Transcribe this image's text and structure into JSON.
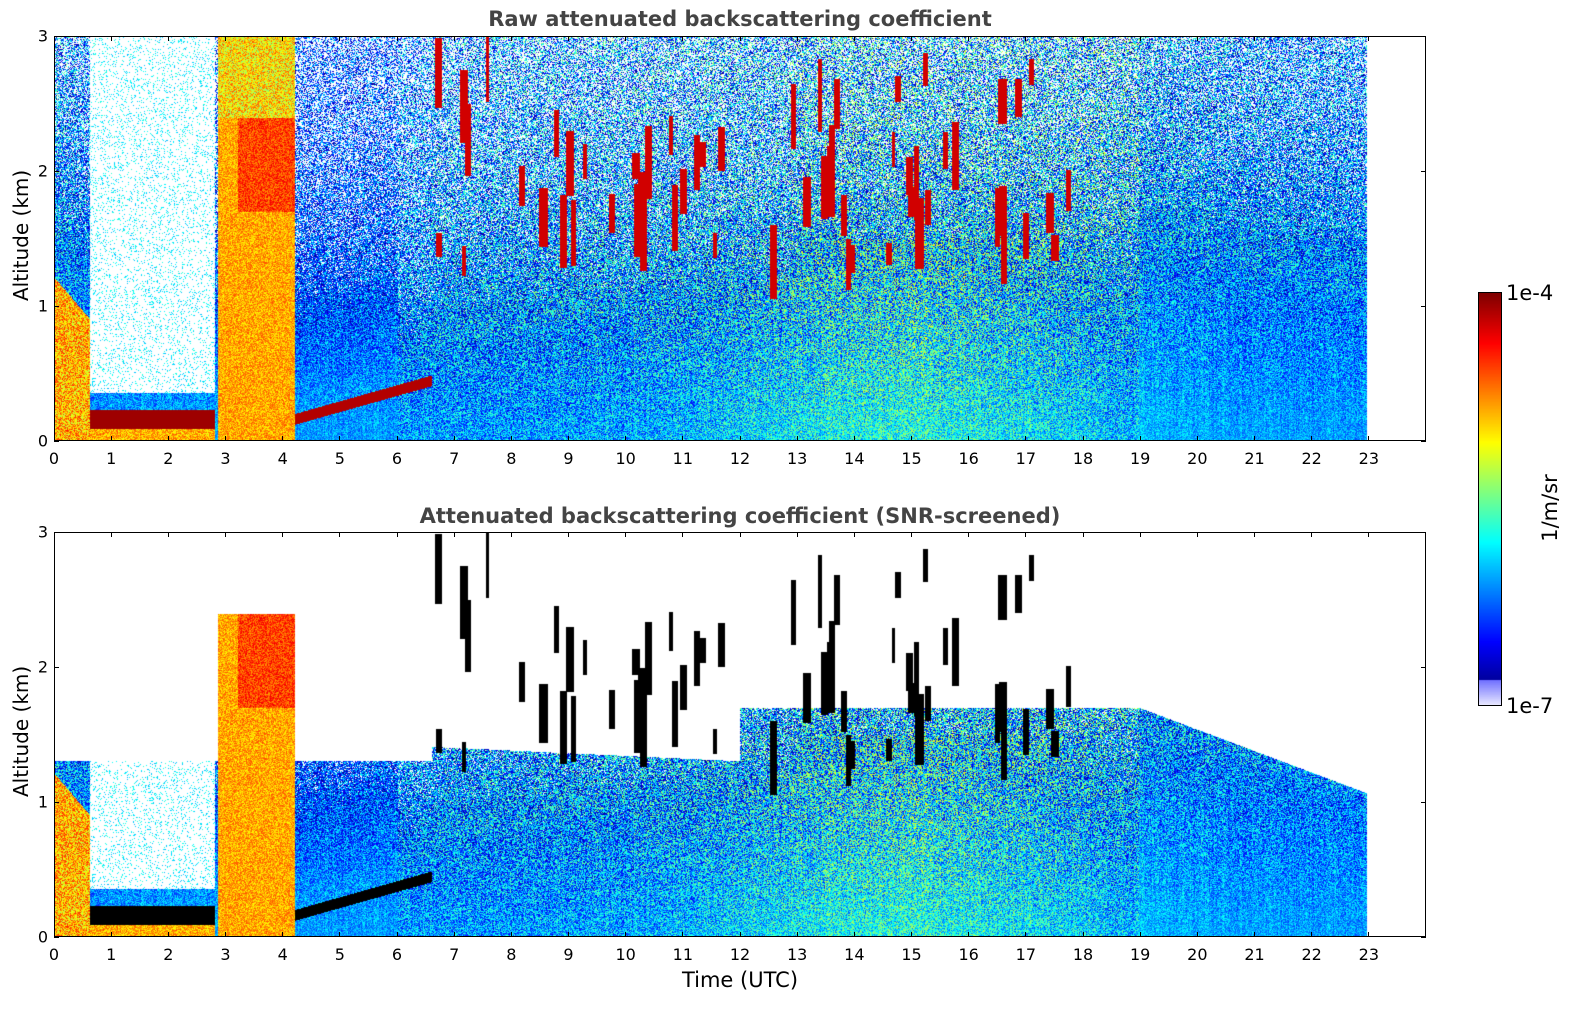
{
  "chart_data": [
    {
      "type": "heatmap",
      "title": "Raw attenuated backscattering coefficient",
      "xlabel": "",
      "ylabel": "Altitude (km)",
      "xlim": [
        0,
        24
      ],
      "ylim": [
        0,
        3
      ],
      "x_ticks": [
        "0",
        "1",
        "2",
        "3",
        "4",
        "5",
        "6",
        "7",
        "8",
        "9",
        "10",
        "11",
        "12",
        "13",
        "14",
        "15",
        "16",
        "17",
        "18",
        "19",
        "20",
        "21",
        "22",
        "23"
      ],
      "y_ticks": [
        "0",
        "1",
        "2",
        "3"
      ],
      "data_end_time": 23,
      "screened": false
    },
    {
      "type": "heatmap",
      "title": "Attenuated backscattering coefficient (SNR-screened)",
      "xlabel": "Time (UTC)",
      "ylabel": "Altitude (km)",
      "xlim": [
        0,
        24
      ],
      "ylim": [
        0,
        3
      ],
      "x_ticks": [
        "0",
        "1",
        "2",
        "3",
        "4",
        "5",
        "6",
        "7",
        "8",
        "9",
        "10",
        "11",
        "12",
        "13",
        "14",
        "15",
        "16",
        "17",
        "18",
        "19",
        "20",
        "21",
        "22",
        "23"
      ],
      "y_ticks": [
        "0",
        "1",
        "2",
        "3"
      ],
      "data_end_time": 23,
      "screened": true
    }
  ],
  "colorbar": {
    "max_label": "1e-4",
    "min_label": "1e-7",
    "unit": "1/m/sr",
    "scale": "log"
  },
  "colors": {
    "title_color": "#444444"
  }
}
